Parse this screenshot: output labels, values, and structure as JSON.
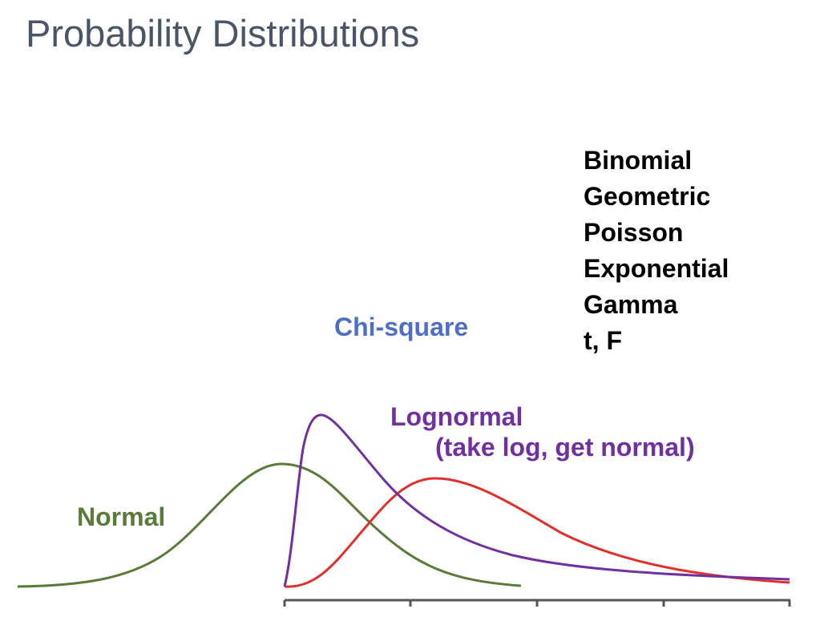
{
  "title": "Probability Distributions",
  "distribution_list": [
    "Binomial",
    "Geometric",
    "Poisson",
    "Exponential",
    "Gamma",
    "t, F"
  ],
  "curves": {
    "chi_square": {
      "label": "Chi-square",
      "color": "#4f6fc7"
    },
    "lognormal": {
      "label": "Lognormal",
      "note": "(take log, get normal)",
      "color": "#7030a0"
    },
    "normal": {
      "label": "Normal",
      "color": "#5a7a3a"
    },
    "right_skewed": {
      "color": "#e0302a"
    }
  },
  "axis_color": "#555555"
}
